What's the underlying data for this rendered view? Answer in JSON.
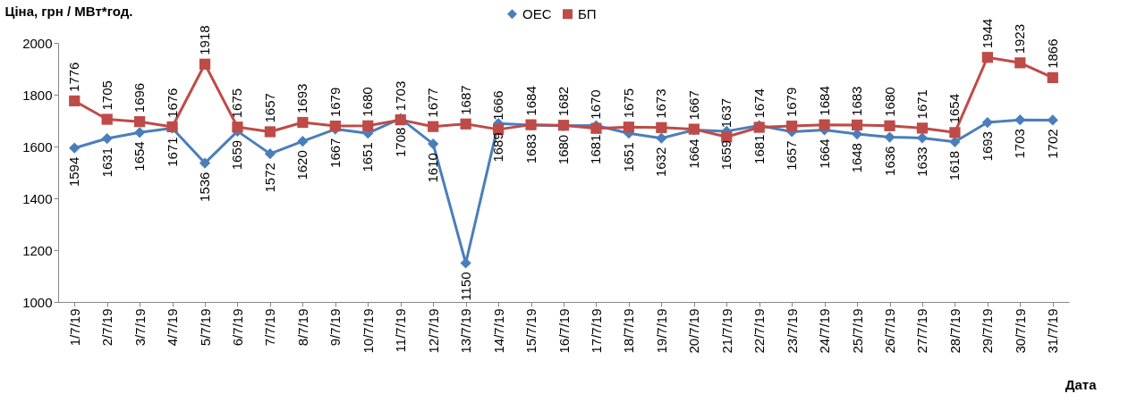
{
  "chart_data": {
    "type": "line",
    "ylabel": "Ціна, грн / МВт*год.",
    "xlabel": "Дата",
    "categories": [
      "1/7/19",
      "2/7/19",
      "3/7/19",
      "4/7/19",
      "5/7/19",
      "6/7/19",
      "7/7/19",
      "8/7/19",
      "9/7/19",
      "10/7/19",
      "11/7/19",
      "12/7/19",
      "13/7/19",
      "14/7/19",
      "15/7/19",
      "16/7/19",
      "17/7/19",
      "18/7/19",
      "19/7/19",
      "20/7/19",
      "21/7/19",
      "22/7/19",
      "23/7/19",
      "24/7/19",
      "25/7/19",
      "26/7/19",
      "27/7/19",
      "28/7/19",
      "29/7/19",
      "30/7/19",
      "31/7/19"
    ],
    "series": [
      {
        "name": "ОЕС",
        "color": "#4a7ebb",
        "marker": "diamond",
        "values": [
          1594,
          1631,
          1654,
          1671,
          1536,
          1659,
          1572,
          1620,
          1667,
          1651,
          1708,
          1610,
          1150,
          1689,
          1683,
          1680,
          1681,
          1651,
          1632,
          1664,
          1659,
          1681,
          1657,
          1664,
          1648,
          1636,
          1633,
          1618,
          1693,
          1703,
          1702
        ]
      },
      {
        "name": "БП",
        "color": "#be4b48",
        "marker": "square",
        "values": [
          1776,
          1705,
          1696,
          1676,
          1918,
          1675,
          1657,
          1693,
          1679,
          1680,
          1703,
          1677,
          1687,
          1666,
          1684,
          1682,
          1670,
          1675,
          1673,
          1667,
          1637,
          1674,
          1679,
          1684,
          1683,
          1680,
          1671,
          1654,
          1944,
          1923,
          1866
        ]
      }
    ],
    "ylim": [
      1000,
      2000
    ],
    "yticks": [
      1000,
      1200,
      1400,
      1600,
      1800,
      2000
    ],
    "grid": false,
    "legend": "top",
    "data_labels": true,
    "line_style": "solid"
  }
}
